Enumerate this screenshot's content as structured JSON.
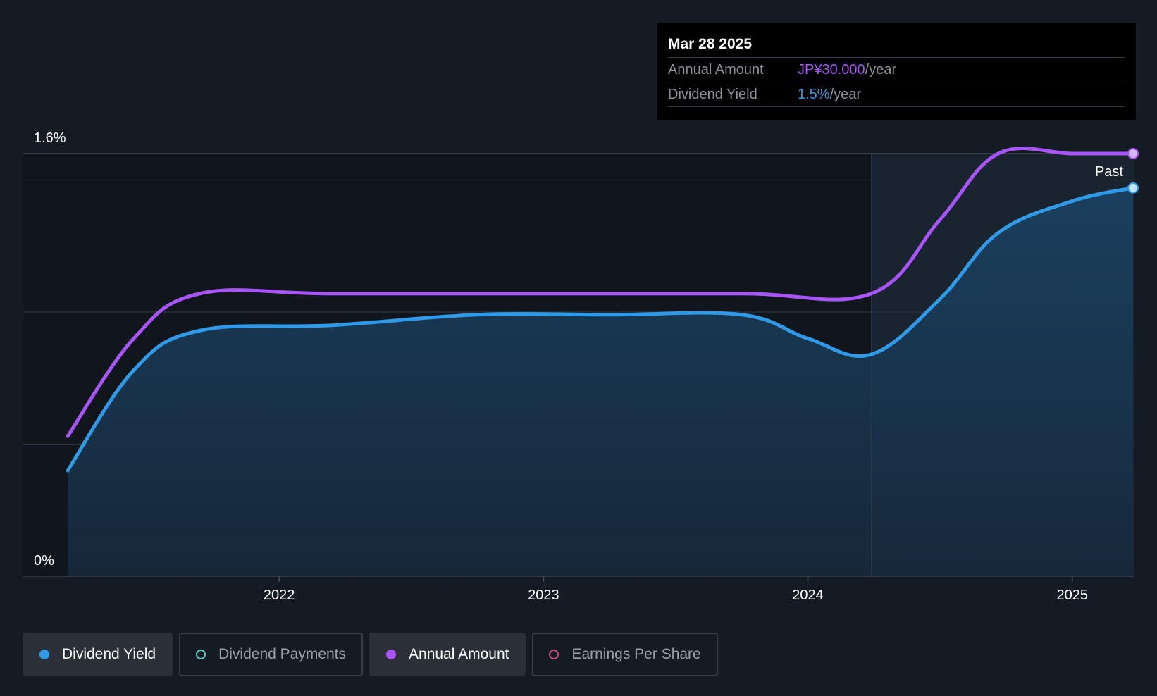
{
  "tooltip": {
    "date": "Mar 28 2025",
    "rows": [
      {
        "label": "Annual Amount",
        "value": "JP¥30.000",
        "unit": "/year",
        "color": "#a855f7"
      },
      {
        "label": "Dividend Yield",
        "value": "1.5%",
        "unit": "/year",
        "color": "#2f9ae8"
      }
    ]
  },
  "legend": [
    {
      "label": "Dividend Yield",
      "color": "#2f9ae8",
      "active": true,
      "filled": true
    },
    {
      "label": "Dividend Payments",
      "color": "#5ad1c5",
      "active": false,
      "filled": false
    },
    {
      "label": "Annual Amount",
      "color": "#a855f7",
      "active": true,
      "filled": true
    },
    {
      "label": "Earnings Per Share",
      "color": "#d04a7d",
      "active": false,
      "filled": false
    }
  ],
  "chart_data": {
    "type": "line",
    "y_axis": {
      "min": 0,
      "max": 1.6,
      "tick_labels": [
        "1.6%",
        "0%"
      ]
    },
    "x_axis": {
      "ticks": [
        {
          "x": 2022,
          "label": "2022"
        },
        {
          "x": 2023,
          "label": "2023"
        },
        {
          "x": 2024,
          "label": "2024"
        },
        {
          "x": 2025,
          "label": "2025"
        }
      ],
      "range": [
        2021.0,
        2025.23
      ]
    },
    "past_label": "Past",
    "past_start_x": 2024.24,
    "series": [
      {
        "name": "Dividend Yield",
        "color": "#2f9ae8",
        "area": true,
        "points": [
          [
            2021.2,
            0.4
          ],
          [
            2021.45,
            0.78
          ],
          [
            2021.7,
            0.93
          ],
          [
            2022.2,
            0.95
          ],
          [
            2022.75,
            0.99
          ],
          [
            2023.25,
            0.99
          ],
          [
            2023.75,
            0.99
          ],
          [
            2024.0,
            0.9
          ],
          [
            2024.24,
            0.84
          ],
          [
            2024.5,
            1.05
          ],
          [
            2024.72,
            1.3
          ],
          [
            2025.0,
            1.42
          ],
          [
            2025.23,
            1.47
          ]
        ]
      },
      {
        "name": "Annual Amount",
        "color": "#a855f7",
        "area": false,
        "points": [
          [
            2021.2,
            0.53
          ],
          [
            2021.45,
            0.9
          ],
          [
            2021.7,
            1.07
          ],
          [
            2022.2,
            1.07
          ],
          [
            2023.0,
            1.07
          ],
          [
            2023.75,
            1.07
          ],
          [
            2024.24,
            1.07
          ],
          [
            2024.5,
            1.35
          ],
          [
            2024.72,
            1.6
          ],
          [
            2025.0,
            1.6
          ],
          [
            2025.23,
            1.6
          ]
        ]
      }
    ]
  }
}
